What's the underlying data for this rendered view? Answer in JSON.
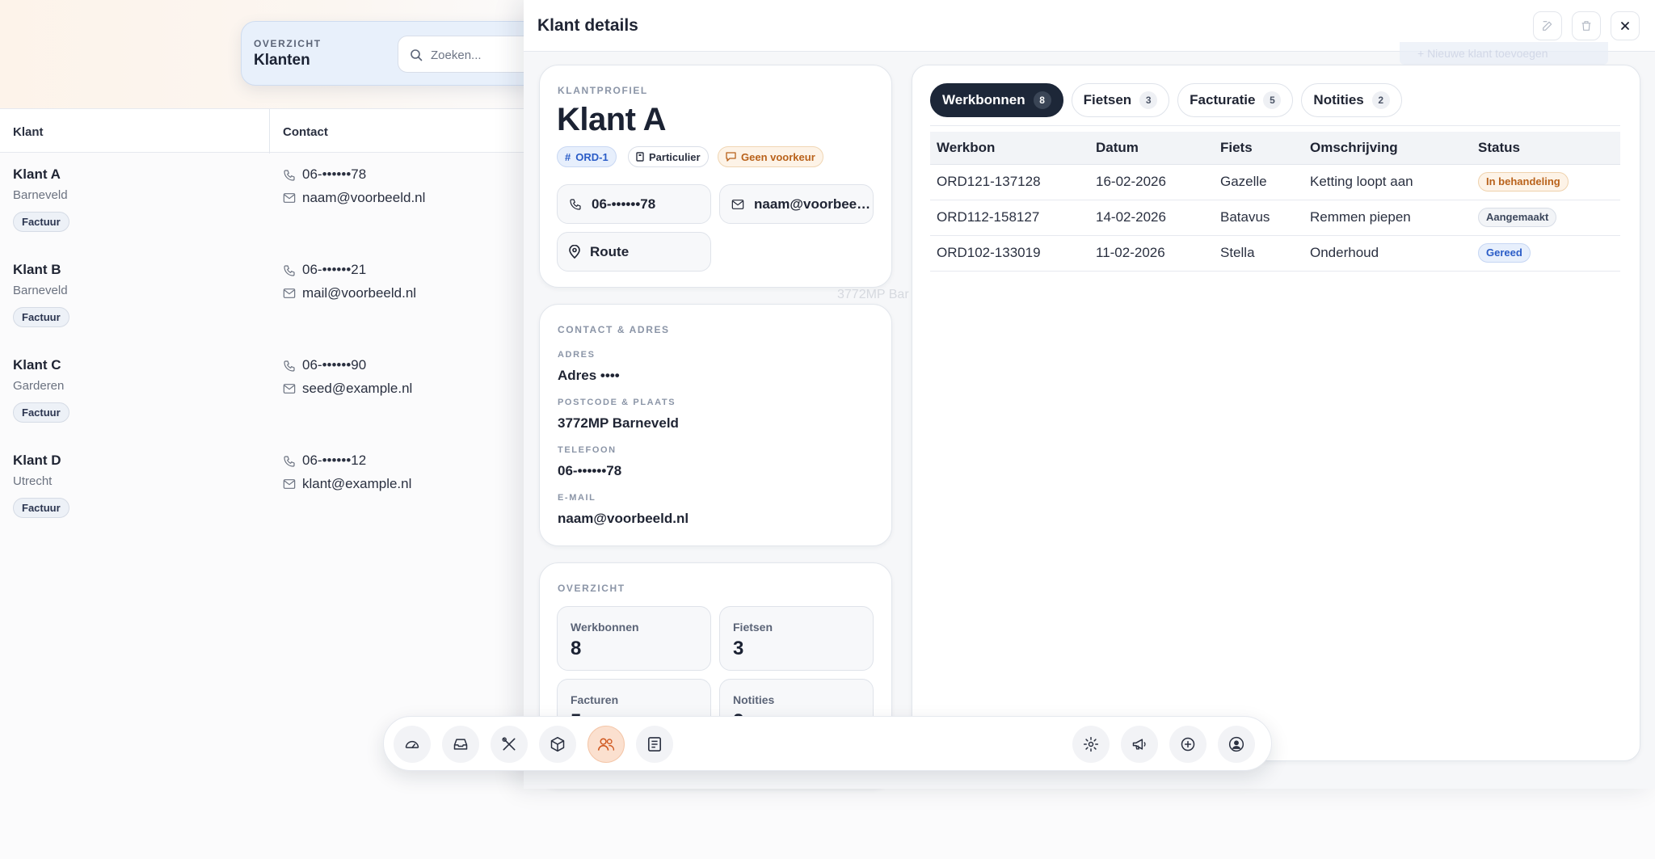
{
  "list_header": {
    "eyebrow": "OVERZICHT",
    "title": "Klanten",
    "search_placeholder": "Zoeken..."
  },
  "list": {
    "columns": [
      "Klant",
      "Contact"
    ],
    "rows": [
      {
        "name": "Klant A",
        "city": "Barneveld",
        "badge": "Factuur",
        "phone": "06-••••••78",
        "email": "naam@voorbeeld.nl"
      },
      {
        "name": "Klant B",
        "city": "Barneveld",
        "badge": "Factuur",
        "phone": "06-••••••21",
        "email": "mail@voorbeeld.nl"
      },
      {
        "name": "Klant C",
        "city": "Garderen",
        "badge": "Factuur",
        "phone": "06-••••••90",
        "email": "seed@example.nl"
      },
      {
        "name": "Klant D",
        "city": "Utrecht",
        "badge": "Factuur",
        "phone": "06-••••••12",
        "email": "klant@example.nl"
      }
    ],
    "ghost_text": [
      "3772MP Bar"
    ]
  },
  "drawer": {
    "title": "Klant details",
    "add_button_label": "+ Nieuwe klant toevoegen"
  },
  "profile": {
    "eyebrow": "KLANTPROFIEL",
    "name": "Klant A",
    "chips": {
      "order": "ORD-1",
      "type": "Particulier",
      "preference": "Geen voorkeur"
    },
    "phone": "06-••••••78",
    "email": "naam@voorbeeld.nl",
    "route_label": "Route"
  },
  "contact": {
    "eyebrow": "CONTACT & ADRES",
    "address_label": "ADRES",
    "address": "Adres ••••",
    "postcode_label": "POSTCODE & PLAATS",
    "postcode": "3772MP Barneveld",
    "phone_label": "TELEFOON",
    "phone": "06-••••••78",
    "email_label": "E-MAIL",
    "email": "naam@voorbeeld.nl"
  },
  "overview": {
    "eyebrow": "OVERZICHT",
    "stats": [
      {
        "label": "Werkbonnen",
        "value": "8"
      },
      {
        "label": "Fietsen",
        "value": "3"
      },
      {
        "label": "Facturen",
        "value": "5"
      },
      {
        "label": "Notities",
        "value": "2"
      }
    ]
  },
  "tabs": [
    {
      "label": "Werkbonnen",
      "count": "8",
      "active": true
    },
    {
      "label": "Fietsen",
      "count": "3"
    },
    {
      "label": "Facturatie",
      "count": "5"
    },
    {
      "label": "Notities",
      "count": "2"
    }
  ],
  "table": {
    "columns": [
      "Werkbon",
      "Datum",
      "Fiets",
      "Omschrijving",
      "Status"
    ],
    "rows": [
      {
        "werkbon": "ORD121-137128",
        "datum": "16-02-2026",
        "fiets": "Gazelle",
        "omschrijving": "Ketting loopt aan",
        "status": "In behandeling",
        "status_color": "#b9621b"
      },
      {
        "werkbon": "ORD112-158127",
        "datum": "14-02-2026",
        "fiets": "Batavus",
        "omschrijving": "Remmen piepen",
        "status": "Aangemaakt",
        "status_color": "#3c475c"
      },
      {
        "werkbon": "ORD102-133019",
        "datum": "11-02-2026",
        "fiets": "Stella",
        "omschrijving": "Onderhoud",
        "status": "Gereed",
        "status_color": "#2a5cc7"
      }
    ]
  },
  "dock": {
    "left_icons": [
      "dashboard-icon",
      "inbox-icon",
      "tools-icon",
      "box-icon",
      "customers-icon",
      "document-icon"
    ],
    "active_icon": "customers-icon",
    "right_icons": [
      "settings-icon",
      "megaphone-icon",
      "plus-circle-icon",
      "user-icon"
    ]
  },
  "colors": {
    "accent_dark": "#1d2738",
    "active_dock": "#fbe0cf",
    "brand_blue": "#2a5cc7",
    "warning_orange": "#b9621b"
  }
}
